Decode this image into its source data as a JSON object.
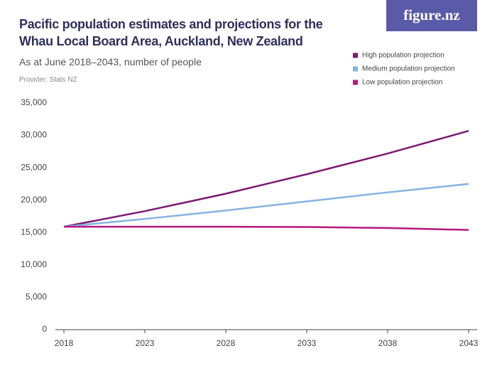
{
  "chart_data": {
    "type": "line",
    "title": "Pacific population estimates and projections for the Whau Local Board Area, Auckland, New Zealand",
    "subtitle": "As at June 2018–2043, number of people",
    "source": "Provider: Stats NZ",
    "logo": "figure.nz",
    "x": [
      2018,
      2023,
      2028,
      2033,
      2038,
      2043
    ],
    "xlim": [
      2018,
      2043
    ],
    "xticks": [
      2018,
      2023,
      2028,
      2033,
      2038,
      2043
    ],
    "ylim": [
      0,
      35000
    ],
    "yticks": [
      0,
      {
        "value": 5000,
        "label": "5,000"
      },
      {
        "value": 10000,
        "label": "10,000"
      },
      {
        "value": 15000,
        "label": "15,000"
      },
      {
        "value": 20000,
        "label": "20,000"
      },
      {
        "value": 25000,
        "label": "25,000"
      },
      {
        "value": 30000,
        "label": "30,000"
      },
      {
        "value": 35000,
        "label": "35,000"
      }
    ],
    "grid": false,
    "legend": "top-right",
    "series": [
      {
        "name": "High population projection",
        "color": "#7b1a72",
        "values": [
          15900,
          18300,
          21000,
          24000,
          27200,
          30700
        ]
      },
      {
        "name": "Medium population projection",
        "color": "#86b3e2",
        "values": [
          15900,
          17100,
          18400,
          19800,
          21200,
          22500
        ]
      },
      {
        "name": "Low population projection",
        "color": "#b5187f",
        "values": [
          15900,
          15900,
          15900,
          15850,
          15700,
          15400
        ]
      }
    ]
  }
}
